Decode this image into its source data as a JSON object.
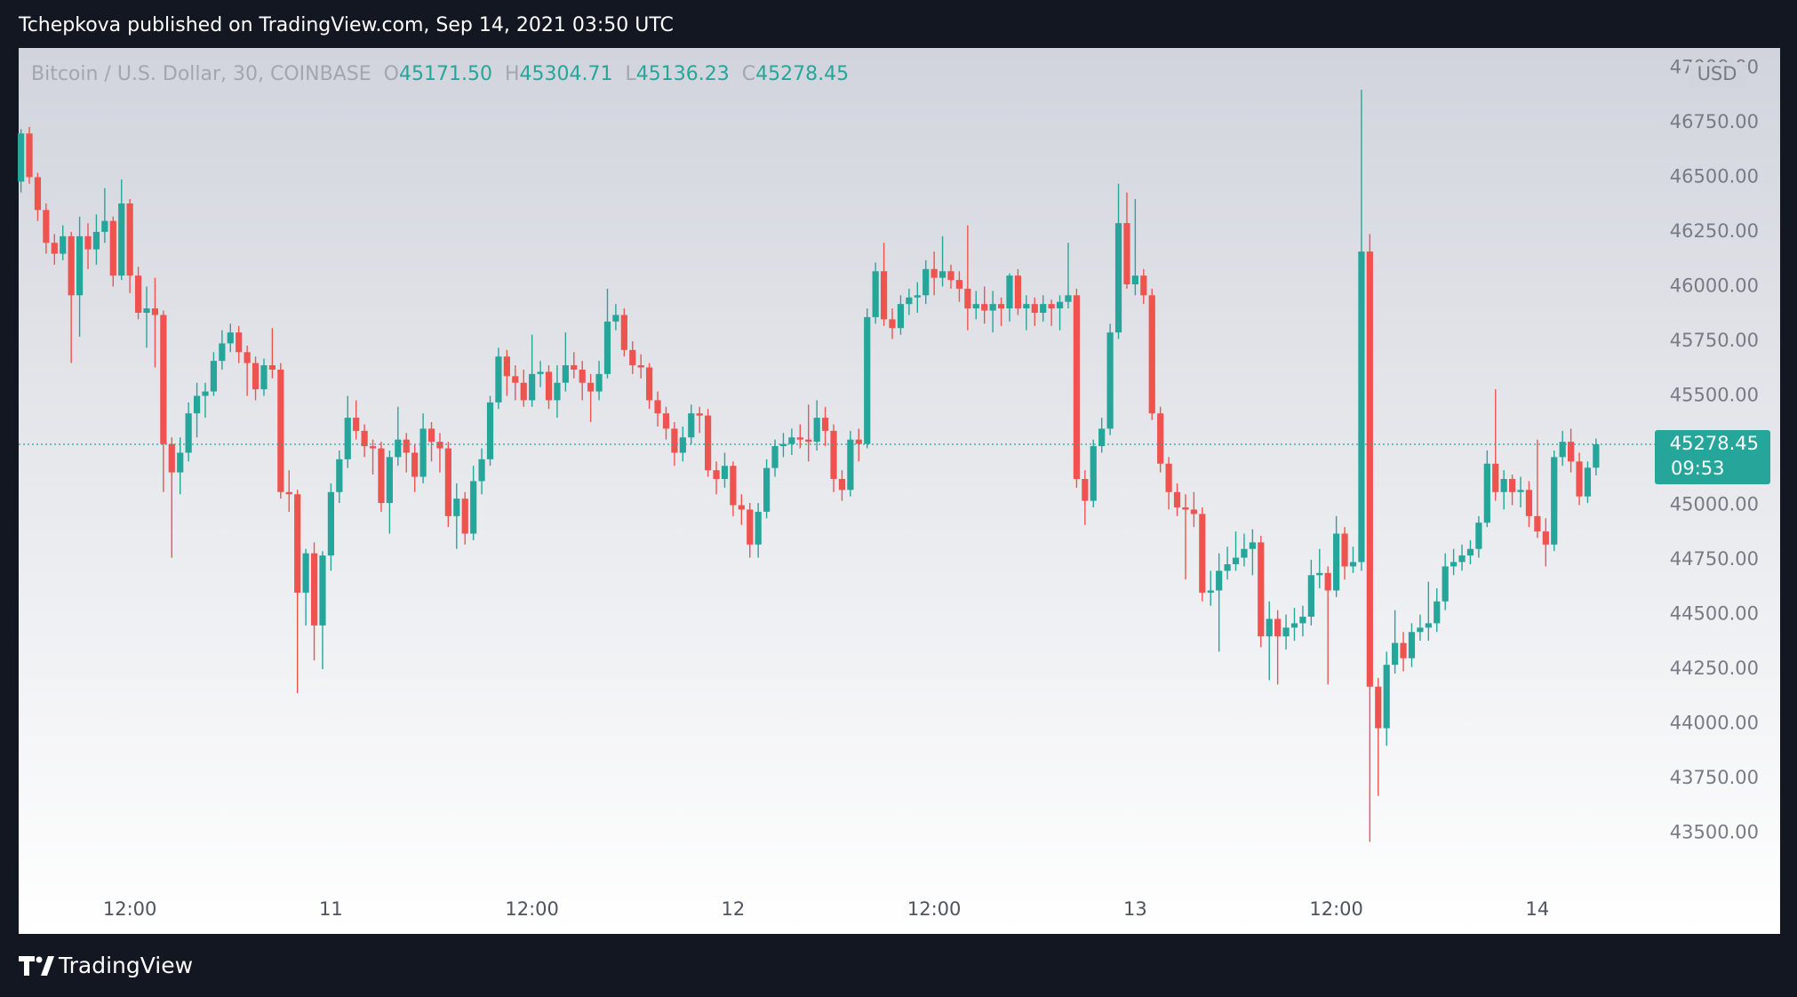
{
  "header": {
    "title": "Tchepkova published on TradingView.com, Sep 14, 2021 03:50 UTC"
  },
  "footer": {
    "brand": "TradingView"
  },
  "chart_data": {
    "type": "candlestick",
    "title": "Bitcoin / U.S. Dollar, 30, COINBASE",
    "ohlc_legend": [
      {
        "key": "O",
        "label": "45171.50"
      },
      {
        "key": "H",
        "label": "45304.71"
      },
      {
        "key": "L",
        "label": "45136.23"
      },
      {
        "key": "C",
        "label": "45278.45"
      }
    ],
    "y_unit": "USD",
    "countdown": "09:53",
    "up_color": "#26a69a",
    "down_color": "#ef5350",
    "grid": false,
    "ylim": [
      43275,
      47091
    ],
    "yticks": [
      {
        "value": 43500,
        "label": "43500.00"
      },
      {
        "value": 43750,
        "label": "43750.00"
      },
      {
        "value": 44000,
        "label": "44000.00"
      },
      {
        "value": 44250,
        "label": "44250.00"
      },
      {
        "value": 44500,
        "label": "44500.00"
      },
      {
        "value": 44750,
        "label": "44750.00"
      },
      {
        "value": 45000,
        "label": "45000.00"
      },
      {
        "value": 45250,
        "label": "45250.00"
      },
      {
        "value": 45500,
        "label": "45500.00"
      },
      {
        "value": 45750,
        "label": "45750.00"
      },
      {
        "value": 46000,
        "label": "46000.00"
      },
      {
        "value": 46250,
        "label": "46250.00"
      },
      {
        "value": 46500,
        "label": "46500.00"
      },
      {
        "value": 46750,
        "label": "46750.00"
      },
      {
        "value": 47000,
        "label": "47000.00"
      }
    ],
    "categories": [
      null,
      null,
      null,
      null,
      null,
      null,
      null,
      null,
      null,
      null,
      null,
      null,
      null,
      "12:00",
      null,
      null,
      null,
      null,
      null,
      null,
      null,
      null,
      null,
      null,
      null,
      null,
      null,
      null,
      null,
      null,
      null,
      null,
      null,
      null,
      null,
      null,
      null,
      "11",
      null,
      null,
      null,
      null,
      null,
      null,
      null,
      null,
      null,
      null,
      null,
      null,
      null,
      null,
      null,
      null,
      null,
      null,
      null,
      null,
      null,
      null,
      null,
      "12:00",
      null,
      null,
      null,
      null,
      null,
      null,
      null,
      null,
      null,
      null,
      null,
      null,
      null,
      null,
      null,
      null,
      null,
      null,
      null,
      null,
      null,
      null,
      null,
      "12",
      null,
      null,
      null,
      null,
      null,
      null,
      null,
      null,
      null,
      null,
      null,
      null,
      null,
      null,
      null,
      null,
      null,
      null,
      null,
      null,
      null,
      null,
      null,
      "12:00",
      null,
      null,
      null,
      null,
      null,
      null,
      null,
      null,
      null,
      null,
      null,
      null,
      null,
      null,
      null,
      null,
      null,
      null,
      null,
      null,
      null,
      null,
      null,
      "13",
      null,
      null,
      null,
      null,
      null,
      null,
      null,
      null,
      null,
      null,
      null,
      null,
      null,
      null,
      null,
      null,
      null,
      null,
      null,
      null,
      null,
      null,
      null,
      "12:00",
      null,
      null,
      null,
      null,
      null,
      null,
      null,
      null,
      null,
      null,
      null,
      null,
      null,
      null,
      null,
      null,
      null,
      null,
      null,
      null,
      null,
      null,
      null,
      "14",
      null,
      null,
      null,
      null,
      null,
      null,
      null
    ],
    "open": [
      46480,
      46700,
      46500,
      46350,
      46200,
      46150,
      46230,
      45960,
      46230,
      46170,
      46250,
      46300,
      46050,
      46380,
      46050,
      45880,
      45900,
      45870,
      45280,
      45150,
      45240,
      45420,
      45500,
      45520,
      45660,
      45740,
      45790,
      45700,
      45650,
      45530,
      45640,
      45620,
      45060,
      45050,
      44600,
      44780,
      44450,
      44770,
      45060,
      45210,
      45400,
      45340,
      45270,
      45260,
      45010,
      45220,
      45300,
      45240,
      45130,
      45350,
      45290,
      45260,
      44950,
      45030,
      44870,
      45110,
      45210,
      45470,
      45680,
      45590,
      45560,
      45480,
      45600,
      45610,
      45480,
      45560,
      45640,
      45620,
      45560,
      45520,
      45600,
      45840,
      45870,
      45710,
      45640,
      45630,
      45480,
      45420,
      45350,
      45240,
      45310,
      45420,
      45410,
      45160,
      45120,
      45180,
      45000,
      44980,
      44820,
      44970,
      45170,
      45270,
      45280,
      45310,
      45300,
      45290,
      45400,
      45340,
      45120,
      45070,
      45300,
      45280,
      45860,
      46070,
      45850,
      45810,
      45920,
      45950,
      45960,
      46080,
      46040,
      46070,
      46030,
      45990,
      45900,
      45920,
      45890,
      45920,
      45900,
      46050,
      45900,
      45920,
      45880,
      45920,
      45900,
      45930,
      45960,
      45120,
      45020,
      45270,
      45350,
      45790,
      46290,
      46010,
      46050,
      45960,
      45420,
      45190,
      45060,
      44990,
      44980,
      44960,
      44600,
      44610,
      44700,
      44730,
      44760,
      44800,
      44830,
      44400,
      44480,
      44400,
      44440,
      44460,
      44490,
      44680,
      44690,
      44610,
      44870,
      44720,
      44740,
      46160,
      44170,
      43980,
      44270,
      44370,
      44300,
      44420,
      44440,
      44460,
      44560,
      44720,
      44740,
      44770,
      44800,
      44920,
      45190,
      45060,
      45120,
      45060,
      45070,
      44950,
      44880,
      44820,
      45220,
      45290,
      45200,
      45040,
      45171.5
    ],
    "high": [
      46720,
      46730,
      46520,
      46380,
      46240,
      46280,
      46250,
      46320,
      46290,
      46330,
      46450,
      46320,
      46490,
      46400,
      46090,
      46000,
      46040,
      45890,
      45310,
      45310,
      45470,
      45560,
      45560,
      45700,
      45800,
      45830,
      45820,
      45730,
      45680,
      45670,
      45810,
      45650,
      45160,
      45070,
      44800,
      44830,
      44790,
      45100,
      45250,
      45500,
      45480,
      45370,
      45300,
      45290,
      45250,
      45450,
      45330,
      45280,
      45420,
      45380,
      45330,
      45290,
      45100,
      45060,
      45180,
      45260,
      45500,
      45720,
      45710,
      45640,
      45620,
      45780,
      45660,
      45640,
      45640,
      45790,
      45700,
      45660,
      45600,
      45660,
      45990,
      45920,
      45900,
      45750,
      45690,
      45650,
      45520,
      45450,
      45380,
      45360,
      45460,
      45450,
      45440,
      45200,
      45240,
      45200,
      45050,
      45010,
      45010,
      45210,
      45300,
      45330,
      45350,
      45370,
      45460,
      45480,
      45450,
      45370,
      45160,
      45340,
      45350,
      45900,
      46110,
      46200,
      45900,
      45960,
      45990,
      46020,
      46120,
      46160,
      46230,
      46100,
      46070,
      46280,
      45980,
      46000,
      45980,
      45950,
      46060,
      46080,
      45960,
      45950,
      45960,
      45940,
      45960,
      46200,
      45990,
      45160,
      45300,
      45400,
      45830,
      46470,
      46430,
      46400,
      46080,
      45990,
      45450,
      45220,
      45100,
      45050,
      45060,
      44990,
      44700,
      44780,
      44810,
      44880,
      44870,
      44890,
      44860,
      44560,
      44520,
      44500,
      44530,
      44540,
      44750,
      44800,
      44720,
      44950,
      44900,
      44810,
      46900,
      46240,
      44210,
      44330,
      44520,
      44420,
      44460,
      44500,
      44650,
      44620,
      44780,
      44800,
      44820,
      44840,
      44950,
      45250,
      45530,
      45160,
      45140,
      45130,
      45110,
      45300,
      44940,
      45250,
      45340,
      45350,
      45240,
      45200,
      45304.71
    ],
    "low": [
      46430,
      46470,
      46300,
      46150,
      46100,
      46120,
      45650,
      45770,
      46080,
      46100,
      46200,
      46000,
      46030,
      45970,
      45850,
      45720,
      45630,
      45060,
      44760,
      45050,
      45200,
      45310,
      45400,
      45500,
      45620,
      45700,
      45650,
      45500,
      45480,
      45500,
      45580,
      45030,
      44970,
      44140,
      44450,
      44290,
      44250,
      44700,
      45010,
      45170,
      45300,
      45220,
      45140,
      44970,
      44870,
      45180,
      45150,
      45060,
      45100,
      45200,
      45150,
      44900,
      44800,
      44820,
      44840,
      45050,
      45180,
      45440,
      45500,
      45480,
      45450,
      45450,
      45540,
      45440,
      45400,
      45520,
      45580,
      45480,
      45380,
      45480,
      45580,
      45800,
      45680,
      45600,
      45580,
      45440,
      45360,
      45300,
      45180,
      45200,
      45280,
      45330,
      45130,
      45050,
      45080,
      44950,
      44910,
      44760,
      44760,
      44940,
      45130,
      45220,
      45230,
      45260,
      45200,
      45250,
      45270,
      45060,
      45020,
      45040,
      45200,
      45260,
      45830,
      45820,
      45760,
      45780,
      45870,
      45880,
      45920,
      45960,
      46000,
      45990,
      45930,
      45800,
      45850,
      45830,
      45790,
      45820,
      45840,
      45870,
      45800,
      45820,
      45840,
      45820,
      45800,
      45900,
      45080,
      44910,
      44990,
      45240,
      45320,
      45760,
      45990,
      45960,
      45920,
      45390,
      45150,
      44980,
      44950,
      44660,
      44900,
      44560,
      44540,
      44330,
      44660,
      44700,
      44720,
      44680,
      44350,
      44200,
      44180,
      44340,
      44380,
      44400,
      44450,
      44620,
      44180,
      44580,
      44660,
      44690,
      44700,
      43460,
      43670,
      43900,
      44230,
      44240,
      44260,
      44380,
      44380,
      44420,
      44520,
      44680,
      44700,
      44730,
      44760,
      44900,
      45020,
      44980,
      45000,
      44990,
      44900,
      44850,
      44720,
      44790,
      45180,
      45150,
      45000,
      45010,
      45136.23
    ],
    "close": [
      46700,
      46500,
      46350,
      46200,
      46150,
      46230,
      45960,
      46230,
      46170,
      46250,
      46300,
      46050,
      46380,
      46050,
      45880,
      45900,
      45870,
      45280,
      45150,
      45240,
      45420,
      45500,
      45520,
      45660,
      45740,
      45790,
      45700,
      45650,
      45530,
      45640,
      45620,
      45060,
      45050,
      44600,
      44780,
      44450,
      44770,
      45060,
      45210,
      45400,
      45340,
      45270,
      45260,
      45010,
      45220,
      45300,
      45240,
      45130,
      45350,
      45290,
      45260,
      44950,
      45030,
      44870,
      45110,
      45210,
      45470,
      45680,
      45590,
      45560,
      45480,
      45600,
      45610,
      45480,
      45560,
      45640,
      45620,
      45560,
      45520,
      45600,
      45840,
      45870,
      45710,
      45640,
      45630,
      45480,
      45420,
      45350,
      45240,
      45310,
      45420,
      45410,
      45160,
      45120,
      45180,
      45000,
      44980,
      44820,
      44970,
      45170,
      45270,
      45280,
      45310,
      45300,
      45290,
      45400,
      45340,
      45120,
      45070,
      45300,
      45280,
      45860,
      46070,
      45850,
      45810,
      45920,
      45950,
      45960,
      46080,
      46040,
      46070,
      46030,
      45990,
      45900,
      45920,
      45890,
      45920,
      45900,
      46050,
      45900,
      45920,
      45880,
      45920,
      45900,
      45930,
      45960,
      45120,
      45020,
      45270,
      45350,
      45790,
      46290,
      46010,
      46050,
      45960,
      45420,
      45190,
      45060,
      44990,
      44980,
      44960,
      44600,
      44610,
      44700,
      44730,
      44760,
      44800,
      44830,
      44400,
      44480,
      44400,
      44440,
      44460,
      44490,
      44680,
      44690,
      44610,
      44870,
      44720,
      44740,
      46160,
      44170,
      43980,
      44270,
      44370,
      44300,
      44420,
      44440,
      44460,
      44560,
      44720,
      44740,
      44770,
      44800,
      44920,
      45190,
      45060,
      45120,
      45060,
      45070,
      44950,
      44880,
      44820,
      45220,
      45290,
      45200,
      45040,
      45171.5,
      45278.45
    ]
  }
}
